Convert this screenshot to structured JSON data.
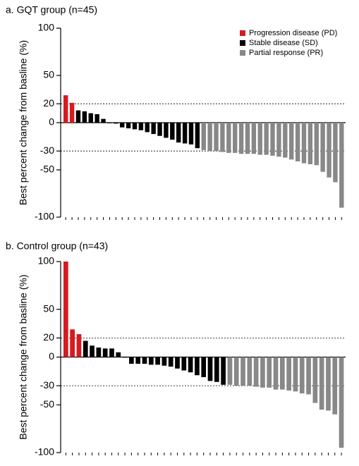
{
  "chart_data": [
    {
      "type": "bar",
      "title": "a. GQT group (n=45)",
      "ylabel": "Best percent change from basline (%)",
      "values": [
        29,
        21,
        13,
        12,
        10,
        9,
        4,
        0,
        -1,
        -5,
        -6,
        -7,
        -8,
        -10,
        -12,
        -14,
        -16,
        -18,
        -21,
        -22,
        -23,
        -27,
        -29,
        -30,
        -30,
        -31,
        -32,
        -32,
        -33,
        -33,
        -33,
        -34,
        -34,
        -35,
        -36,
        -37,
        -39,
        -41,
        -43,
        -44,
        -45,
        -52,
        -58,
        -63,
        -90
      ],
      "colors": [
        "#d71920",
        "#d71920",
        "#000000",
        "#000000",
        "#000000",
        "#000000",
        "#000000",
        "#000000",
        "#000000",
        "#000000",
        "#000000",
        "#000000",
        "#000000",
        "#000000",
        "#000000",
        "#000000",
        "#000000",
        "#000000",
        "#000000",
        "#000000",
        "#000000",
        "#000000",
        "#888888",
        "#888888",
        "#888888",
        "#888888",
        "#888888",
        "#888888",
        "#888888",
        "#888888",
        "#888888",
        "#888888",
        "#888888",
        "#888888",
        "#888888",
        "#888888",
        "#888888",
        "#888888",
        "#888888",
        "#888888",
        "#888888",
        "#888888",
        "#888888",
        "#888888",
        "#888888"
      ],
      "ylim": [
        -100,
        100
      ],
      "yticks": [
        100,
        50,
        20,
        0,
        -30,
        -50,
        -100
      ],
      "reference_lines": [
        20,
        -30
      ],
      "legend": [
        {
          "name": "Progression disease (PD)",
          "color": "#d71920"
        },
        {
          "name": "Stable disease (SD)",
          "color": "#000000"
        },
        {
          "name": "Partial response (PR)",
          "color": "#888888"
        }
      ],
      "legend_position": "upper right"
    },
    {
      "type": "bar",
      "title": "b. Control group (n=43)",
      "ylabel": "Best percent change from basline (%)",
      "values": [
        100,
        29,
        24,
        17,
        12,
        10,
        9,
        9,
        5,
        0,
        -7,
        -7,
        -7,
        -8,
        -8,
        -9,
        -10,
        -12,
        -14,
        -16,
        -19,
        -21,
        -25,
        -26,
        -29,
        -29,
        -30,
        -30,
        -30,
        -31,
        -32,
        -32,
        -34,
        -34,
        -35,
        -36,
        -38,
        -39,
        -48,
        -55,
        -56,
        -60,
        -95
      ],
      "colors": [
        "#d71920",
        "#d71920",
        "#d71920",
        "#000000",
        "#000000",
        "#000000",
        "#000000",
        "#000000",
        "#000000",
        "#000000",
        "#000000",
        "#000000",
        "#000000",
        "#000000",
        "#000000",
        "#000000",
        "#000000",
        "#000000",
        "#000000",
        "#000000",
        "#000000",
        "#000000",
        "#000000",
        "#000000",
        "#000000",
        "#888888",
        "#888888",
        "#888888",
        "#888888",
        "#888888",
        "#888888",
        "#888888",
        "#888888",
        "#888888",
        "#888888",
        "#888888",
        "#888888",
        "#888888",
        "#888888",
        "#888888",
        "#888888",
        "#888888",
        "#888888"
      ],
      "ylim": [
        -100,
        100
      ],
      "yticks": [
        100,
        50,
        20,
        0,
        -30,
        -50,
        -100
      ],
      "reference_lines": [
        20,
        -30
      ]
    }
  ]
}
